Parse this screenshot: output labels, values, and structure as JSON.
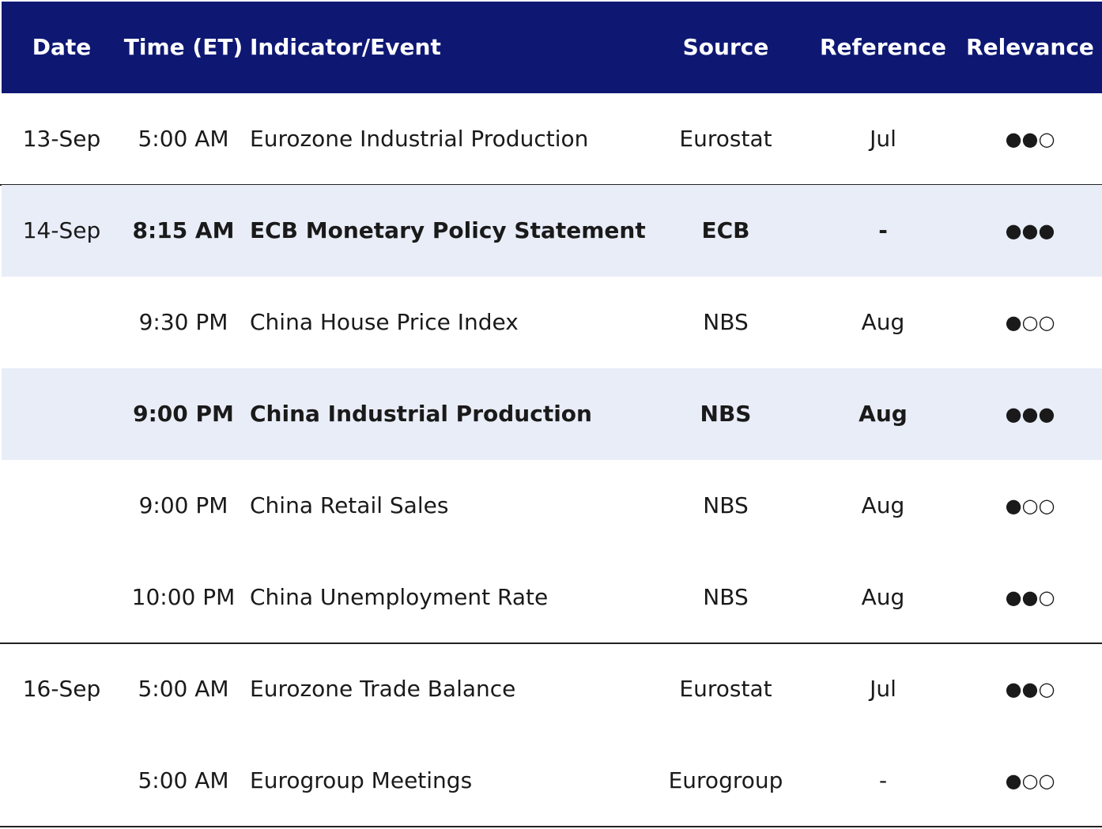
{
  "header": {
    "date": "Date",
    "time": "Time (ET)",
    "event": "Indicator/Event",
    "source": "Source",
    "reference": "Reference",
    "relevance": "Relevance"
  },
  "groups": [
    {
      "date": "13-Sep",
      "rows": [
        {
          "time": "5:00 AM",
          "event": "Eurozone Industrial Production",
          "source": "Eurostat",
          "reference": "Jul",
          "relevance": "●●○"
        }
      ]
    },
    {
      "date": "14-Sep",
      "rows": [
        {
          "time": "8:15 AM",
          "event": "ECB Monetary Policy Statement",
          "source": "ECB",
          "reference": "-",
          "relevance": "●●●",
          "highlight": true
        },
        {
          "time": "9:30 PM",
          "event": "China House Price Index",
          "source": "NBS",
          "reference": "Aug",
          "relevance": "●○○"
        },
        {
          "time": "9:00 PM",
          "event": "China Industrial Production",
          "source": "NBS",
          "reference": "Aug",
          "relevance": "●●●",
          "highlight": true
        },
        {
          "time": "9:00 PM",
          "event": "China Retail Sales",
          "source": "NBS",
          "reference": "Aug",
          "relevance": "●○○"
        },
        {
          "time": "10:00 PM",
          "event": "China Unemployment Rate",
          "source": "NBS",
          "reference": "Aug",
          "relevance": "●●○"
        }
      ]
    },
    {
      "date": "16-Sep",
      "rows": [
        {
          "time": "5:00 AM",
          "event": "Eurozone Trade Balance",
          "source": "Eurostat",
          "reference": "Jul",
          "relevance": "●●○"
        },
        {
          "time": "5:00 AM",
          "event": "Eurogroup Meetings",
          "source": "Eurogroup",
          "reference": "-",
          "relevance": "●○○"
        }
      ]
    }
  ]
}
